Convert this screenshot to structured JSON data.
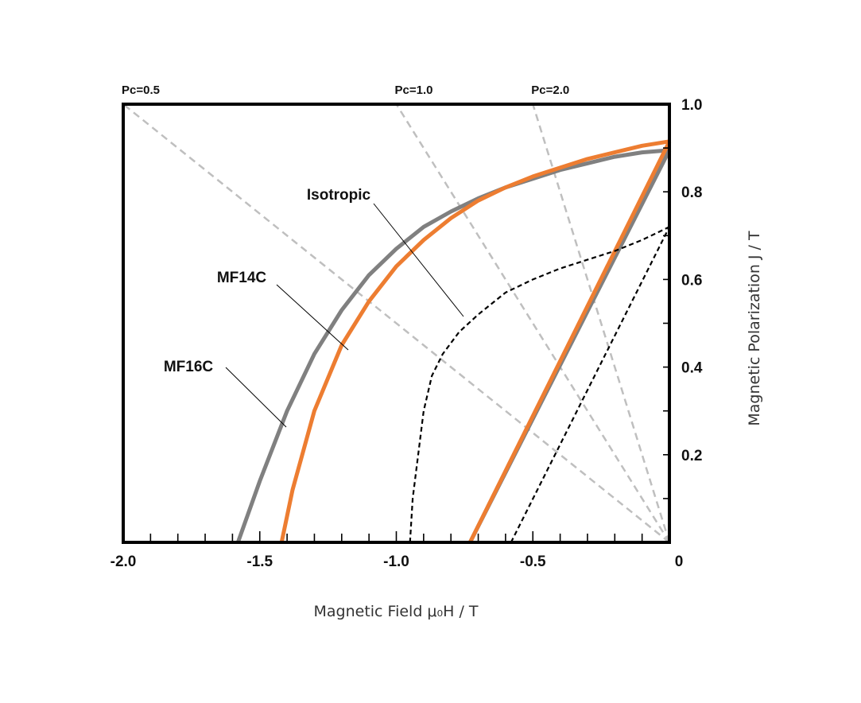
{
  "chart_data": {
    "type": "line",
    "xlabel": "Magnetic Field  μ₀H / T",
    "ylabel": "Magnetic Polarization J / T",
    "xlim": [
      -2.0,
      0
    ],
    "ylim": [
      0,
      1.0
    ],
    "x_ticks": [
      {
        "value": -2.0,
        "label": "-2.0"
      },
      {
        "value": -1.5,
        "label": "-1.5"
      },
      {
        "value": -1.0,
        "label": "-1.0"
      },
      {
        "value": -0.5,
        "label": "-0.5"
      },
      {
        "value": 0,
        "label": "0"
      }
    ],
    "y_ticks": [
      {
        "value": 0.2,
        "label": "0.2"
      },
      {
        "value": 0.4,
        "label": "0.4"
      },
      {
        "value": 0.6,
        "label": "0.6"
      },
      {
        "value": 0.8,
        "label": "0.8"
      },
      {
        "value": 1.0,
        "label": "1.0"
      }
    ],
    "grid": false,
    "load_lines": [
      {
        "label": "Pc=0.5",
        "end": [
          -2.0,
          1.0
        ]
      },
      {
        "label": "Pc=1.0",
        "end": [
          -1.0,
          1.0
        ]
      },
      {
        "label": "Pc=2.0",
        "end": [
          -0.5,
          1.0
        ]
      }
    ],
    "series": [
      {
        "name": "MF16C",
        "color": "#808080",
        "style": "solid",
        "J_curve": [
          [
            -1.58,
            0.0
          ],
          [
            -1.5,
            0.14
          ],
          [
            -1.4,
            0.3
          ],
          [
            -1.3,
            0.43
          ],
          [
            -1.2,
            0.53
          ],
          [
            -1.1,
            0.61
          ],
          [
            -1.0,
            0.67
          ],
          [
            -0.9,
            0.72
          ],
          [
            -0.8,
            0.755
          ],
          [
            -0.7,
            0.785
          ],
          [
            -0.6,
            0.81
          ],
          [
            -0.5,
            0.83
          ],
          [
            -0.4,
            0.85
          ],
          [
            -0.3,
            0.865
          ],
          [
            -0.2,
            0.88
          ],
          [
            -0.1,
            0.89
          ],
          [
            0,
            0.895
          ]
        ],
        "B_line": [
          [
            -0.73,
            0.0
          ],
          [
            0,
            0.895
          ]
        ]
      },
      {
        "name": "MF14C",
        "color": "#ED7D31",
        "style": "solid",
        "J_curve": [
          [
            -1.42,
            0.0
          ],
          [
            -1.38,
            0.12
          ],
          [
            -1.3,
            0.3
          ],
          [
            -1.2,
            0.45
          ],
          [
            -1.1,
            0.55
          ],
          [
            -1.0,
            0.63
          ],
          [
            -0.9,
            0.69
          ],
          [
            -0.8,
            0.74
          ],
          [
            -0.7,
            0.78
          ],
          [
            -0.6,
            0.81
          ],
          [
            -0.5,
            0.835
          ],
          [
            -0.4,
            0.855
          ],
          [
            -0.3,
            0.875
          ],
          [
            -0.2,
            0.89
          ],
          [
            -0.1,
            0.905
          ],
          [
            0,
            0.915
          ]
        ],
        "B_line": [
          [
            -0.73,
            0.0
          ],
          [
            0,
            0.915
          ]
        ]
      },
      {
        "name": "Isotropic",
        "color": "#000000",
        "style": "dashed",
        "J_curve": [
          [
            -0.95,
            0.0
          ],
          [
            -0.94,
            0.1
          ],
          [
            -0.92,
            0.2
          ],
          [
            -0.9,
            0.3
          ],
          [
            -0.87,
            0.38
          ],
          [
            -0.83,
            0.43
          ],
          [
            -0.77,
            0.48
          ],
          [
            -0.7,
            0.52
          ],
          [
            -0.6,
            0.57
          ],
          [
            -0.5,
            0.6
          ],
          [
            -0.4,
            0.625
          ],
          [
            -0.3,
            0.645
          ],
          [
            -0.2,
            0.665
          ],
          [
            -0.1,
            0.69
          ],
          [
            0,
            0.72
          ]
        ],
        "B_line": [
          [
            -0.58,
            0.0
          ],
          [
            0,
            0.72
          ]
        ]
      }
    ],
    "annotations": [
      {
        "text": "MF16C",
        "target_series": "MF16C"
      },
      {
        "text": "MF14C",
        "target_series": "MF14C"
      },
      {
        "text": "Isotropic",
        "target_series": "Isotropic"
      }
    ]
  }
}
